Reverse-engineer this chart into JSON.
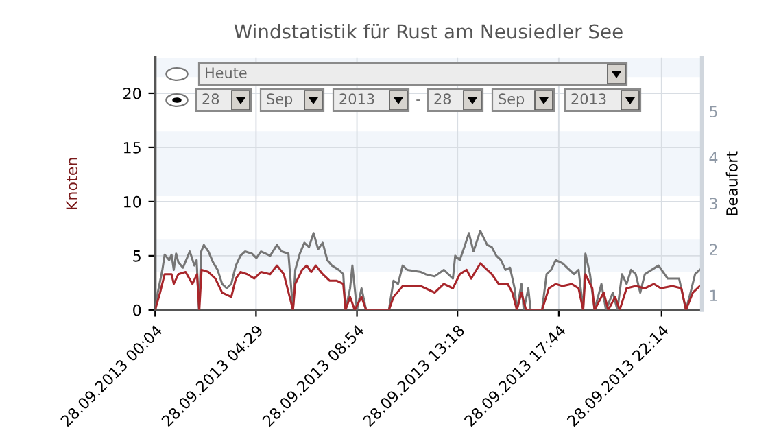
{
  "chart_data": {
    "type": "line",
    "title": "Windstatistik für Rust am Neusiedler See",
    "ylabel": "Knoten",
    "y2label": "Beaufort",
    "xlim": [
      "2013-09-28T00:04",
      "2013-09-29T00:00"
    ],
    "xticks": [
      {
        "value": "2013-09-28T00:04",
        "label": "28.09.2013 00:04"
      },
      {
        "value": "2013-09-28T04:29",
        "label": "28.09.2013 04:29"
      },
      {
        "value": "2013-09-28T08:54",
        "label": "28.09.2013 08:54"
      },
      {
        "value": "2013-09-28T13:18",
        "label": "28.09.2013 13:18"
      },
      {
        "value": "2013-09-28T17:44",
        "label": "28.09.2013 17:44"
      },
      {
        "value": "2013-09-28T22:14",
        "label": "28.09.2013 22:14"
      }
    ],
    "ylim": [
      0,
      23.3
    ],
    "yticks": [
      0,
      5,
      10,
      15,
      20
    ],
    "y2lim": [
      0.68,
      6.17
    ],
    "y2ticks": [
      1,
      2,
      3,
      4,
      5
    ],
    "grid": true,
    "bands": [
      {
        "axis": "y",
        "from": 3.5,
        "to": 6.5,
        "color": "#f2f6fb"
      },
      {
        "axis": "y",
        "from": 10.5,
        "to": 16.5,
        "color": "#f2f6fb"
      },
      {
        "axis": "y",
        "from": 21.5,
        "to": 23.3,
        "color": "#f2f6fb"
      }
    ],
    "annotations": [
      "Heute",
      "28",
      "Sep",
      "2013",
      "-",
      "28",
      "Sep",
      "2013"
    ],
    "series": [
      {
        "color": "#767676",
        "x": [
          "2013-09-28T00:04",
          "2013-09-28T00:11",
          "2013-09-28T00:23",
          "2013-09-28T00:29",
          "2013-09-28T00:41",
          "2013-09-28T00:47",
          "2013-09-28T00:53",
          "2013-09-28T00:59",
          "2013-09-28T01:05",
          "2013-09-28T01:17",
          "2013-09-28T01:35",
          "2013-09-28T01:47",
          "2013-09-28T01:53",
          "2013-09-28T01:59",
          "2013-09-28T02:05",
          "2013-09-28T02:12",
          "2013-09-28T02:24",
          "2013-09-28T02:36",
          "2013-09-28T02:48",
          "2013-09-28T03:00",
          "2013-09-28T03:12",
          "2013-09-28T03:24",
          "2013-09-28T03:36",
          "2013-09-28T03:48",
          "2013-09-28T04:00",
          "2013-09-28T04:18",
          "2013-09-28T04:30",
          "2013-09-28T04:42",
          "2013-09-28T04:54",
          "2013-09-28T05:06",
          "2013-09-28T05:24",
          "2013-09-28T05:36",
          "2013-09-28T05:54",
          "2013-09-28T06:06",
          "2013-09-28T06:12",
          "2013-09-28T06:24",
          "2013-09-28T06:36",
          "2013-09-28T06:48",
          "2013-09-28T07:00",
          "2013-09-28T07:12",
          "2013-09-28T07:24",
          "2013-09-28T07:36",
          "2013-09-28T07:48",
          "2013-09-28T08:06",
          "2013-09-28T08:18",
          "2013-09-28T08:24",
          "2013-09-28T08:36",
          "2013-09-28T08:42",
          "2013-09-28T08:54",
          "2013-09-28T09:06",
          "2013-09-28T09:18",
          "2013-09-28T10:18",
          "2013-09-28T10:30",
          "2013-09-28T10:42",
          "2013-09-28T10:54",
          "2013-09-28T11:06",
          "2013-09-28T11:42",
          "2013-09-28T11:54",
          "2013-09-28T12:18",
          "2013-09-28T12:42",
          "2013-09-28T13:06",
          "2013-09-28T13:12",
          "2013-09-28T13:24",
          "2013-09-28T13:36",
          "2013-09-28T13:48",
          "2013-09-28T14:00",
          "2013-09-28T14:18",
          "2013-09-28T14:36",
          "2013-09-28T14:48",
          "2013-09-28T15:00",
          "2013-09-28T15:12",
          "2013-09-28T15:24",
          "2013-09-28T15:36",
          "2013-09-28T15:48",
          "2013-09-28T15:54",
          "2013-09-28T16:06",
          "2013-09-28T16:12",
          "2013-09-28T16:24",
          "2013-09-28T16:30",
          "2013-09-28T17:00",
          "2013-09-28T17:12",
          "2013-09-28T17:24",
          "2013-09-28T17:36",
          "2013-09-28T17:54",
          "2013-09-28T18:12",
          "2013-09-28T18:24",
          "2013-09-28T18:36",
          "2013-09-28T18:48",
          "2013-09-28T18:54",
          "2013-09-28T19:06",
          "2013-09-28T19:18",
          "2013-09-28T19:36",
          "2013-09-28T19:48",
          "2013-09-28T20:06",
          "2013-09-28T20:18",
          "2013-09-28T20:30",
          "2013-09-28T20:42",
          "2013-09-28T20:54",
          "2013-09-28T21:06",
          "2013-09-28T21:18",
          "2013-09-28T21:30",
          "2013-09-28T21:48",
          "2013-09-28T22:06",
          "2013-09-28T22:18",
          "2013-09-28T22:30",
          "2013-09-28T22:42",
          "2013-09-28T23:00",
          "2013-09-28T23:18",
          "2013-09-28T23:30",
          "2013-09-28T23:42",
          "2013-09-28T23:54"
        ],
        "values": [
          0,
          1.6,
          3.7,
          5.1,
          4.6,
          5.1,
          3.7,
          5.2,
          4.4,
          3.9,
          5.4,
          4.1,
          4.6,
          0,
          5.4,
          6.0,
          5.4,
          4.4,
          3.7,
          2.4,
          2.0,
          2.4,
          4.1,
          5.0,
          5.4,
          5.2,
          4.8,
          5.4,
          5.2,
          5.0,
          6.0,
          5.4,
          5.2,
          0,
          3.7,
          5.2,
          6.2,
          5.8,
          7.1,
          5.6,
          6.2,
          4.6,
          4.1,
          3.7,
          3.3,
          0,
          2.0,
          4.1,
          0,
          2.0,
          0,
          0,
          2.7,
          2.4,
          4.1,
          3.7,
          3.5,
          3.3,
          3.1,
          3.7,
          2.9,
          5.0,
          4.6,
          5.8,
          7.1,
          5.4,
          7.3,
          6.0,
          5.8,
          5.0,
          4.6,
          3.7,
          3.9,
          2.0,
          0,
          2.4,
          0,
          2.0,
          0,
          0,
          3.3,
          3.7,
          4.6,
          4.3,
          3.7,
          3.3,
          3.7,
          0,
          5.2,
          3.3,
          0,
          2.4,
          0,
          1.6,
          0,
          3.3,
          2.4,
          3.7,
          3.3,
          1.6,
          3.3,
          3.7,
          4.1,
          3.5,
          2.9,
          2.9,
          2.9,
          0,
          1.6,
          3.3,
          3.7
        ]
      },
      {
        "color": "#a8262b",
        "x": [
          "2013-09-28T00:04",
          "2013-09-28T00:17",
          "2013-09-28T00:29",
          "2013-09-28T00:47",
          "2013-09-28T00:53",
          "2013-09-28T01:05",
          "2013-09-28T01:24",
          "2013-09-28T01:42",
          "2013-09-28T01:54",
          "2013-09-28T02:00",
          "2013-09-28T02:06",
          "2013-09-28T02:24",
          "2013-09-28T02:42",
          "2013-09-28T03:00",
          "2013-09-28T03:24",
          "2013-09-28T03:36",
          "2013-09-28T03:48",
          "2013-09-28T04:06",
          "2013-09-28T04:24",
          "2013-09-28T04:42",
          "2013-09-28T05:06",
          "2013-09-28T05:24",
          "2013-09-28T05:42",
          "2013-09-28T06:06",
          "2013-09-28T06:12",
          "2013-09-28T06:30",
          "2013-09-28T06:42",
          "2013-09-28T06:54",
          "2013-09-28T07:06",
          "2013-09-28T07:24",
          "2013-09-28T07:42",
          "2013-09-28T08:00",
          "2013-09-28T08:18",
          "2013-09-28T08:24",
          "2013-09-28T08:36",
          "2013-09-28T08:48",
          "2013-09-28T09:06",
          "2013-09-28T09:18",
          "2013-09-28T10:18",
          "2013-09-28T10:30",
          "2013-09-28T10:54",
          "2013-09-28T11:42",
          "2013-09-28T11:54",
          "2013-09-28T12:18",
          "2013-09-28T12:42",
          "2013-09-28T13:06",
          "2013-09-28T13:24",
          "2013-09-28T13:42",
          "2013-09-28T13:54",
          "2013-09-28T14:18",
          "2013-09-28T14:36",
          "2013-09-28T14:48",
          "2013-09-28T15:06",
          "2013-09-28T15:30",
          "2013-09-28T15:42",
          "2013-09-28T15:54",
          "2013-09-28T16:06",
          "2013-09-28T16:18",
          "2013-09-28T17:00",
          "2013-09-28T17:18",
          "2013-09-28T17:36",
          "2013-09-28T17:54",
          "2013-09-28T18:18",
          "2013-09-28T18:36",
          "2013-09-28T18:48",
          "2013-09-28T18:54",
          "2013-09-28T19:12",
          "2013-09-28T19:18",
          "2013-09-28T19:42",
          "2013-09-28T19:54",
          "2013-09-28T20:12",
          "2013-09-28T20:24",
          "2013-09-28T20:42",
          "2013-09-28T21:06",
          "2013-09-28T21:30",
          "2013-09-28T21:54",
          "2013-09-28T22:12",
          "2013-09-28T22:42",
          "2013-09-28T23:06",
          "2013-09-28T23:18",
          "2013-09-28T23:36",
          "2013-09-28T23:54"
        ],
        "values": [
          0,
          1.6,
          3.3,
          3.3,
          2.4,
          3.3,
          3.5,
          2.4,
          3.3,
          0,
          3.7,
          3.5,
          2.9,
          1.6,
          1.2,
          2.9,
          3.5,
          3.3,
          2.9,
          3.5,
          3.3,
          4.1,
          3.3,
          0,
          2.4,
          3.7,
          4.1,
          3.5,
          4.1,
          3.3,
          2.7,
          2.7,
          2.4,
          0,
          1.2,
          0,
          1.2,
          0,
          0,
          1.2,
          2.2,
          2.2,
          2.0,
          1.6,
          2.4,
          2.0,
          3.3,
          3.7,
          2.9,
          4.3,
          3.7,
          3.3,
          2.4,
          2.4,
          1.6,
          0,
          1.6,
          0,
          0,
          2.0,
          2.4,
          2.2,
          2.4,
          2.0,
          0,
          3.3,
          2.0,
          0,
          1.6,
          0,
          1.2,
          0,
          2.0,
          2.2,
          2.0,
          2.4,
          2.0,
          2.2,
          2.0,
          0,
          1.6,
          2.2
        ]
      }
    ]
  }
}
